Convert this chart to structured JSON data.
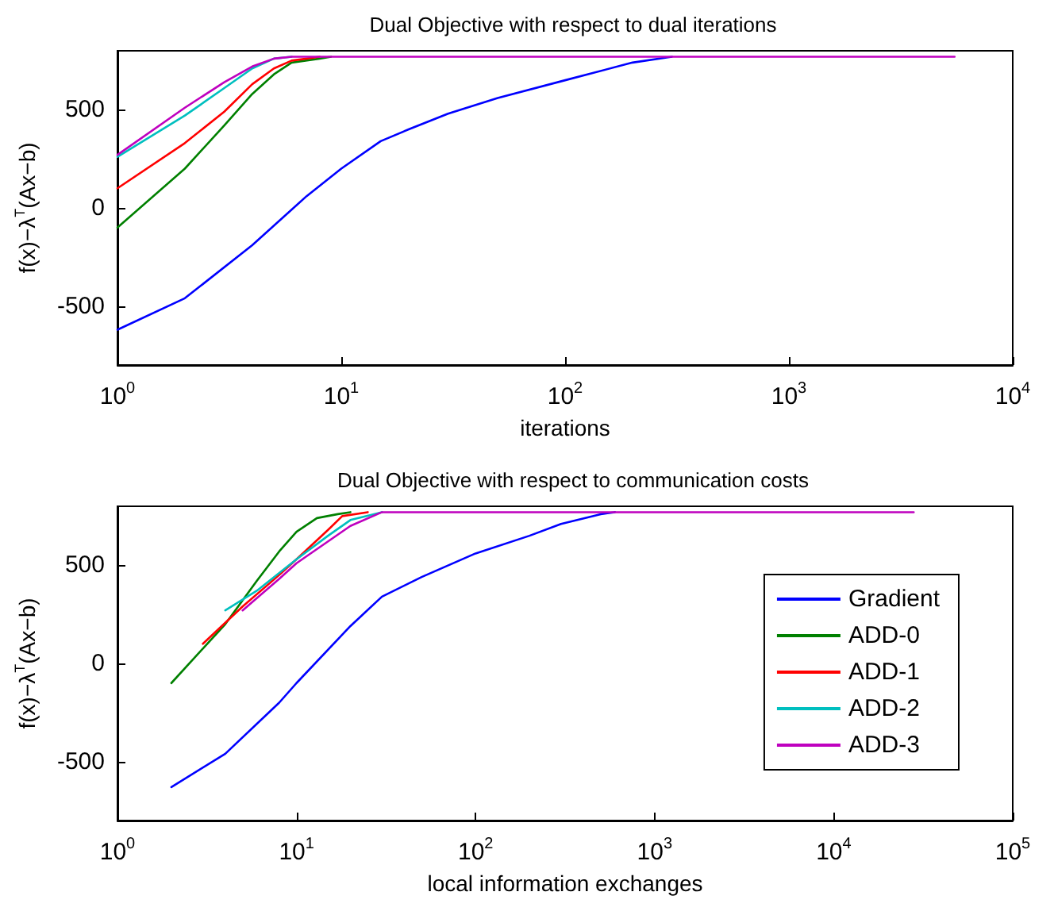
{
  "chart_data": [
    {
      "type": "line",
      "title": "Dual Objective with respect to dual iterations",
      "xlabel": "iterations",
      "ylabel": "f(x)−λ$^{T}$(Ax−b)",
      "log": "x",
      "xlim": [
        1,
        10000
      ],
      "ylim": [
        -800,
        800
      ],
      "xticks": [
        {
          "value": 1,
          "label": "10$^{0}$"
        },
        {
          "value": 10,
          "label": "10$^{1}$"
        },
        {
          "value": 100,
          "label": "10$^{2}$"
        },
        {
          "value": 1000,
          "label": "10$^{3}$"
        },
        {
          "value": 10000,
          "label": "10$^{4}$"
        }
      ],
      "yticks": [
        -500,
        0,
        500
      ],
      "grid": false,
      "legend": false,
      "line_style": "solid",
      "series": [
        {
          "color": "#0000ff",
          "x": [
            1,
            2,
            4,
            7,
            10,
            15,
            20,
            30,
            50,
            100,
            200,
            300
          ],
          "values": [
            -620,
            -460,
            -190,
            60,
            200,
            340,
            400,
            480,
            560,
            650,
            740,
            770
          ]
        },
        {
          "color": "#008000",
          "x": [
            1,
            2,
            3,
            4,
            5,
            6,
            8,
            9
          ],
          "values": [
            -100,
            200,
            420,
            580,
            680,
            740,
            760,
            770
          ]
        },
        {
          "color": "#ff0000",
          "x": [
            1,
            2,
            3,
            4,
            5,
            6,
            7,
            8
          ],
          "values": [
            100,
            330,
            490,
            630,
            710,
            750,
            760,
            770
          ]
        },
        {
          "color": "#00bfbf",
          "x": [
            1,
            2,
            3,
            4,
            5,
            6
          ],
          "values": [
            260,
            470,
            610,
            710,
            760,
            770
          ]
        },
        {
          "color": "#bf00bf",
          "x": [
            1,
            2,
            3,
            4,
            5,
            6,
            5500
          ],
          "values": [
            270,
            510,
            640,
            720,
            760,
            770,
            770
          ]
        }
      ]
    },
    {
      "type": "line",
      "title": "Dual Objective with respect to communication costs",
      "xlabel": "local information exchanges",
      "ylabel": "f(x)−λ$^{T}$(Ax−b)",
      "log": "x",
      "xlim": [
        1,
        100000
      ],
      "ylim": [
        -800,
        800
      ],
      "xticks": [
        {
          "value": 1,
          "label": "10$^{0}$"
        },
        {
          "value": 10,
          "label": "10$^{1}$"
        },
        {
          "value": 100,
          "label": "10$^{2}$"
        },
        {
          "value": 1000,
          "label": "10$^{3}$"
        },
        {
          "value": 10000,
          "label": "10$^{4}$"
        },
        {
          "value": 100000,
          "label": "10$^{5}$"
        }
      ],
      "yticks": [
        -500,
        0,
        500
      ],
      "grid": false,
      "legend": "right",
      "line_style": "solid",
      "series": [
        {
          "name": "Gradient",
          "color": "#0000ff",
          "x": [
            2,
            4,
            8,
            10,
            20,
            30,
            50,
            100,
            200,
            300,
            500,
            600
          ],
          "values": [
            -630,
            -460,
            -200,
            -100,
            190,
            340,
            440,
            560,
            650,
            710,
            760,
            770
          ]
        },
        {
          "name": "ADD-0",
          "color": "#008000",
          "x": [
            2,
            4,
            6,
            8,
            10,
            13,
            17,
            20
          ],
          "values": [
            -100,
            200,
            420,
            570,
            670,
            740,
            760,
            770
          ]
        },
        {
          "name": "ADD-1",
          "color": "#ff0000",
          "x": [
            3,
            5,
            8,
            10,
            15,
            18,
            25
          ],
          "values": [
            100,
            290,
            450,
            530,
            680,
            750,
            770
          ]
        },
        {
          "name": "ADD-2",
          "color": "#00bfbf",
          "x": [
            4,
            6,
            10,
            15,
            20,
            30
          ],
          "values": [
            270,
            370,
            530,
            650,
            730,
            770
          ]
        },
        {
          "name": "ADD-3",
          "color": "#bf00bf",
          "x": [
            5,
            8,
            10,
            20,
            30,
            28000
          ],
          "values": [
            270,
            430,
            510,
            700,
            770,
            770
          ]
        }
      ]
    }
  ]
}
